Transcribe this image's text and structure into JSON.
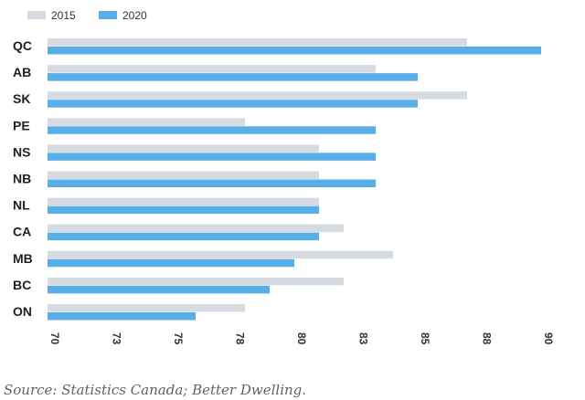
{
  "chart_data": {
    "type": "bar",
    "orientation": "horizontal",
    "categories": [
      "QC",
      "AB",
      "SK",
      "PE",
      "NS",
      "NB",
      "NL",
      "CA",
      "MB",
      "BC",
      "ON"
    ],
    "series": [
      {
        "name": "2015",
        "color": "#d5dbe0",
        "values": [
          87.0,
          83.3,
          87.0,
          78.0,
          81.0,
          81.0,
          81.0,
          82.0,
          84.0,
          82.0,
          78.0
        ]
      },
      {
        "name": "2020",
        "color": "#5aaee6",
        "values": [
          90.0,
          85.0,
          85.0,
          83.3,
          83.3,
          83.3,
          81.0,
          81.0,
          80.0,
          79.0,
          76.0
        ]
      }
    ],
    "xticks": [
      "70",
      "73",
      "75",
      "78",
      "80",
      "83",
      "85",
      "88",
      "90"
    ],
    "xlim": [
      70,
      90
    ],
    "legend_position": "top-left",
    "grid": false
  },
  "source": "Source: Statistics Canada; Better Dwelling."
}
